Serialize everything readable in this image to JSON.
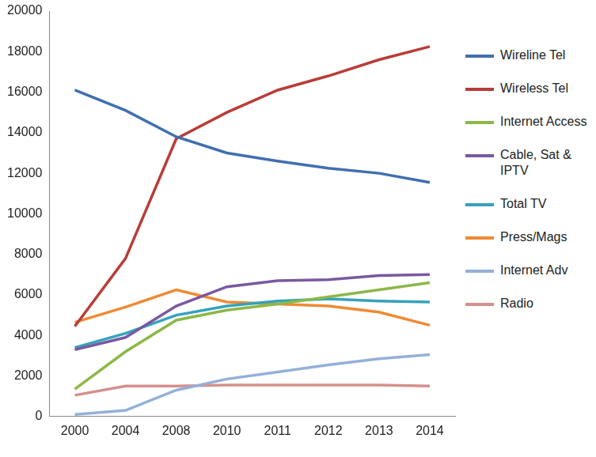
{
  "chart_data": {
    "type": "line",
    "categories": [
      "2000",
      "2004",
      "2008",
      "2010",
      "2011",
      "2012",
      "2013",
      "2014"
    ],
    "series": [
      {
        "name": "Wireline Tel",
        "color": "#3f6fb0",
        "values": [
          16100,
          15100,
          13800,
          13000,
          12600,
          12250,
          12000,
          11550
        ]
      },
      {
        "name": "Wireless Tel",
        "color": "#b83d37",
        "values": [
          4450,
          7800,
          13700,
          15000,
          16100,
          16800,
          17600,
          18250
        ]
      },
      {
        "name": "Internet Access",
        "color": "#8cb848",
        "values": [
          1350,
          3200,
          4750,
          5250,
          5550,
          5900,
          6250,
          6600
        ]
      },
      {
        "name": "Cable, Sat & IPTV",
        "color": "#7a59a0",
        "values": [
          3300,
          3900,
          5450,
          6400,
          6700,
          6750,
          6950,
          7000
        ]
      },
      {
        "name": "Total TV",
        "color": "#35a2bc",
        "values": [
          3400,
          4100,
          5000,
          5450,
          5700,
          5800,
          5700,
          5650
        ]
      },
      {
        "name": "Press/Mags",
        "color": "#f08a32",
        "values": [
          4650,
          5400,
          6250,
          5650,
          5550,
          5450,
          5150,
          4500
        ]
      },
      {
        "name": "Internet Adv",
        "color": "#94b0d8",
        "values": [
          100,
          300,
          1300,
          1850,
          2200,
          2550,
          2850,
          3050
        ]
      },
      {
        "name": "Radio",
        "color": "#d5908c",
        "values": [
          1050,
          1500,
          1500,
          1550,
          1550,
          1550,
          1550,
          1500
        ]
      }
    ],
    "ylim": [
      0,
      20000
    ],
    "yticks": [
      0,
      2000,
      4000,
      6000,
      8000,
      10000,
      12000,
      14000,
      16000,
      18000,
      20000
    ],
    "grid": false,
    "legend": "right"
  }
}
